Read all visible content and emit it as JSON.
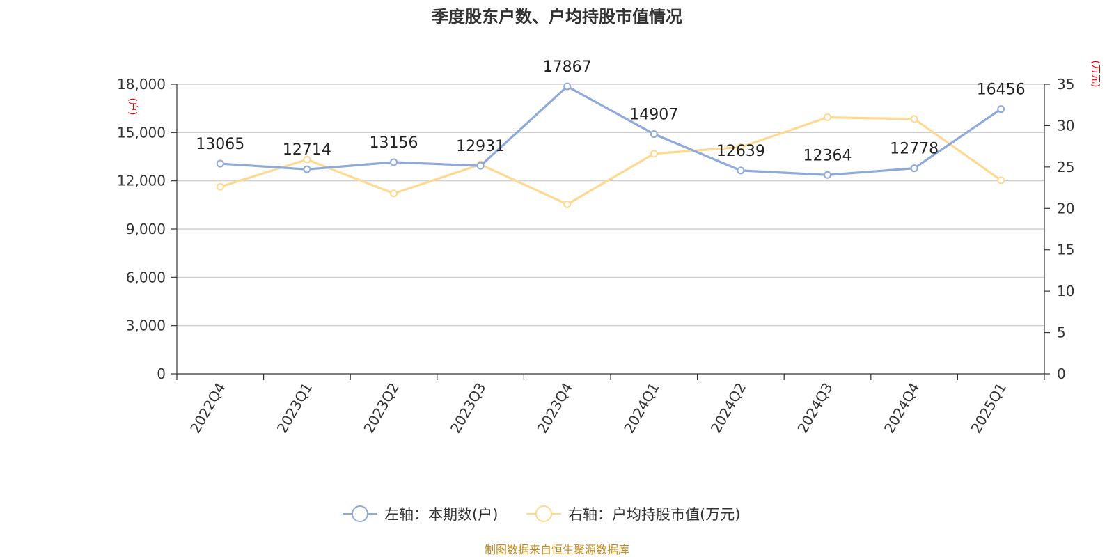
{
  "chart_data": {
    "type": "line",
    "title": "季度股东户数、户均持股市值情况",
    "categories": [
      "2022Q4",
      "2023Q1",
      "2023Q2",
      "2023Q3",
      "2023Q4",
      "2024Q1",
      "2024Q2",
      "2024Q3",
      "2024Q4",
      "2025Q1"
    ],
    "left_axis": {
      "unit": "(户)",
      "range": [
        0,
        18000
      ],
      "ticks": [
        0,
        3000,
        6000,
        9000,
        12000,
        15000,
        18000
      ],
      "tick_labels": [
        "0",
        "3,000",
        "6,000",
        "9,000",
        "12,000",
        "15,000",
        "18,000"
      ]
    },
    "right_axis": {
      "unit": "(万元)",
      "range": [
        0,
        35
      ],
      "ticks": [
        0,
        5,
        10,
        15,
        20,
        25,
        30,
        35
      ],
      "tick_labels": [
        "0",
        "5",
        "10",
        "15",
        "20",
        "25",
        "30",
        "35"
      ]
    },
    "series": [
      {
        "name": "左轴：本期数(户)",
        "axis": "left",
        "color": "#8eaadb",
        "values": [
          13065,
          12714,
          13156,
          12931,
          17867,
          14907,
          12639,
          12364,
          12778,
          16456
        ],
        "data_labels": [
          "13065",
          "12714",
          "13156",
          "12931",
          "17867",
          "14907",
          "12639",
          "12364",
          "12778",
          "16456"
        ]
      },
      {
        "name": "右轴：户均持股市值(万元)",
        "axis": "right",
        "color": "#ffd992",
        "values": [
          22.6,
          25.9,
          21.8,
          25.3,
          20.5,
          26.6,
          27.4,
          31.0,
          30.8,
          23.4
        ]
      }
    ],
    "grid": true,
    "legend_position": "bottom-center",
    "source": "制图数据来自恒生聚源数据库"
  }
}
